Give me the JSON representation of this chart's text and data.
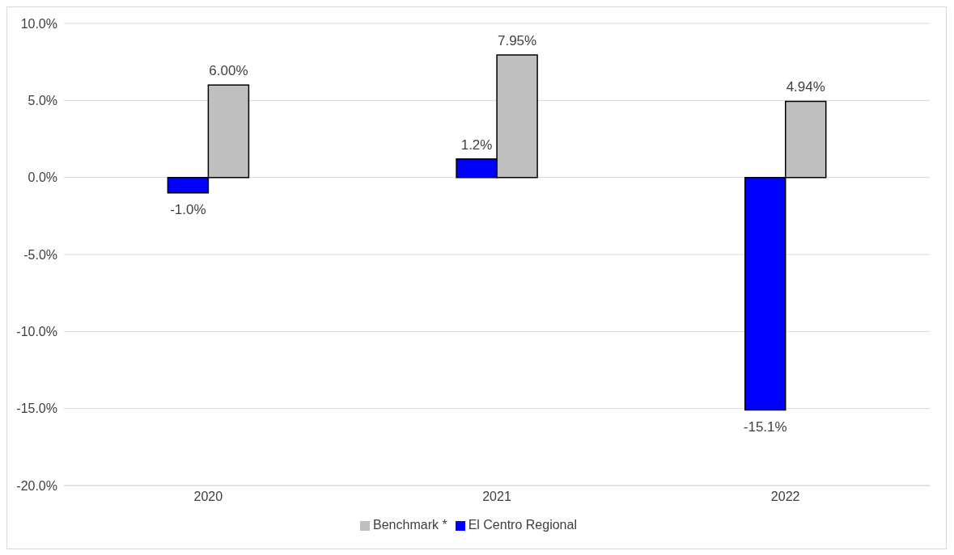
{
  "chart_data": {
    "type": "bar",
    "categories": [
      "2020",
      "2021",
      "2022"
    ],
    "series": [
      {
        "name": "El Centro Regional",
        "color": "#0000ff",
        "values": [
          -1.0,
          1.2,
          -15.1
        ],
        "value_labels": [
          "-1.0%",
          "1.2%",
          "-15.1%"
        ]
      },
      {
        "name": "Benchmark *",
        "color": "#bfbfbf",
        "values": [
          6.0,
          7.95,
          4.94
        ],
        "value_labels": [
          "6.00%",
          "7.95%",
          "4.94%"
        ]
      }
    ],
    "ylim": [
      -20,
      10
    ],
    "yticks": [
      {
        "value": -20,
        "label": "-20.0%"
      },
      {
        "value": -15,
        "label": "-15.0%"
      },
      {
        "value": -10,
        "label": "-10.0%"
      },
      {
        "value": -5,
        "label": "-5.0%"
      },
      {
        "value": 0,
        "label": "0.0%"
      },
      {
        "value": 5,
        "label": "5.0%"
      },
      {
        "value": 10,
        "label": "10.0%"
      }
    ],
    "grid": "y",
    "legend": "bottom"
  }
}
